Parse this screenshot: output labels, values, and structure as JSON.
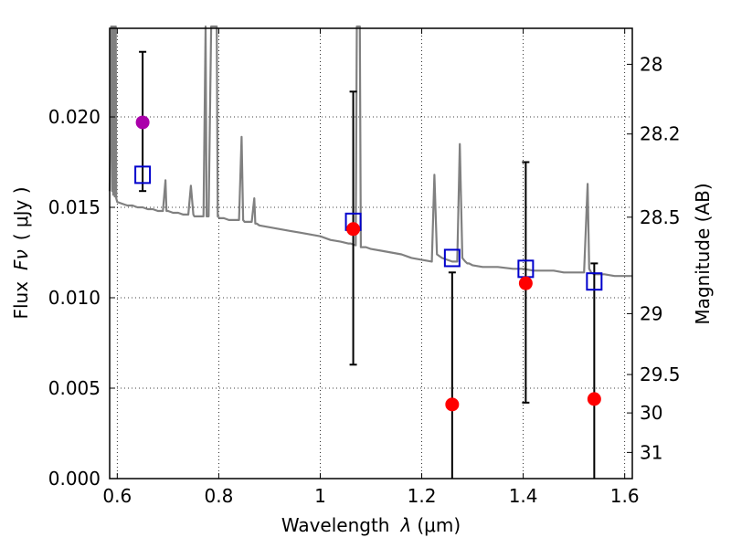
{
  "chart_data": {
    "type": "scatter",
    "xlabel_prefix": "Wavelength",
    "xlabel_symbol": "λ",
    "xlabel_unit": "(μm)",
    "ylabel_prefix": "Flux",
    "ylabel_symbol": "Fν",
    "ylabel_unit": "( μJy )",
    "y2label": "Magnitude (AB)",
    "xlim": [
      0.585,
      1.615
    ],
    "ylim": [
      0.0,
      0.0249
    ],
    "x_ticks": [
      0.6,
      0.8,
      1.0,
      1.2,
      1.4,
      1.6
    ],
    "x_tick_labels": [
      "0.6",
      "0.8",
      "1",
      "1.2",
      "1.4",
      "1.6"
    ],
    "y_ticks": [
      0.0,
      0.005,
      0.01,
      0.015,
      0.02
    ],
    "y_tick_labels": [
      "0.000",
      "0.005",
      "0.010",
      "0.015",
      "0.020"
    ],
    "y2_ticks": [
      28,
      28.2,
      28.5,
      29,
      29.5,
      30,
      31
    ],
    "y2_tick_labels": [
      "28",
      "28.2",
      "28.5",
      "29",
      "29.5",
      "30",
      "31"
    ],
    "grid": true,
    "colors": {
      "model": "#808080",
      "synthetic": "#0000cc",
      "observed": "#ff0000",
      "highlight": "#aa00aa",
      "errorbar": "#000000"
    },
    "model_spectrum": {
      "x": [
        0.585,
        0.588,
        0.59,
        0.591,
        0.592,
        0.594,
        0.595,
        0.597,
        0.598,
        0.6,
        0.61,
        0.62,
        0.63,
        0.64,
        0.65,
        0.66,
        0.67,
        0.68,
        0.69,
        0.695,
        0.697,
        0.7,
        0.71,
        0.72,
        0.73,
        0.74,
        0.745,
        0.75,
        0.752,
        0.755,
        0.76,
        0.77,
        0.774,
        0.776,
        0.78,
        0.785,
        0.79,
        0.796,
        0.798,
        0.802,
        0.806,
        0.81,
        0.82,
        0.83,
        0.84,
        0.845,
        0.848,
        0.851,
        0.855,
        0.86,
        0.865,
        0.87,
        0.872,
        0.875,
        0.88,
        0.9,
        0.92,
        0.94,
        0.96,
        0.98,
        1.0,
        1.02,
        1.04,
        1.055,
        1.06,
        1.07,
        1.072,
        1.074,
        1.076,
        1.078,
        1.08,
        1.085,
        1.09,
        1.1,
        1.12,
        1.14,
        1.16,
        1.18,
        1.2,
        1.22,
        1.225,
        1.23,
        1.235,
        1.24,
        1.25,
        1.26,
        1.27,
        1.275,
        1.28,
        1.283,
        1.286,
        1.29,
        1.293,
        1.3,
        1.32,
        1.35,
        1.38,
        1.4,
        1.42,
        1.44,
        1.46,
        1.48,
        1.5,
        1.51,
        1.52,
        1.527,
        1.53,
        1.534,
        1.54,
        1.56,
        1.58,
        1.6,
        1.615
      ],
      "y": [
        0.0159,
        0.026,
        0.0159,
        0.026,
        0.0157,
        0.026,
        0.0156,
        0.026,
        0.0155,
        0.0153,
        0.0152,
        0.0151,
        0.0151,
        0.015,
        0.015,
        0.0149,
        0.0149,
        0.0148,
        0.0148,
        0.0165,
        0.0148,
        0.0148,
        0.0147,
        0.0147,
        0.0146,
        0.0146,
        0.0162,
        0.0146,
        0.0145,
        0.0145,
        0.0145,
        0.0145,
        0.026,
        0.0145,
        0.0145,
        0.026,
        0.026,
        0.026,
        0.0145,
        0.0144,
        0.0144,
        0.0144,
        0.0143,
        0.0143,
        0.0143,
        0.0189,
        0.0143,
        0.0142,
        0.0142,
        0.0142,
        0.0142,
        0.0155,
        0.0141,
        0.0141,
        0.014,
        0.0139,
        0.0138,
        0.0137,
        0.0136,
        0.0135,
        0.0134,
        0.0132,
        0.0131,
        0.013,
        0.013,
        0.0129,
        0.026,
        0.026,
        0.026,
        0.026,
        0.0128,
        0.0128,
        0.0128,
        0.0127,
        0.0126,
        0.0125,
        0.0124,
        0.0122,
        0.0121,
        0.012,
        0.0168,
        0.0124,
        0.0123,
        0.0122,
        0.0121,
        0.012,
        0.012,
        0.0185,
        0.0122,
        0.0121,
        0.012,
        0.0119,
        0.0119,
        0.0118,
        0.0117,
        0.0117,
        0.0116,
        0.0116,
        0.0115,
        0.0115,
        0.0115,
        0.0114,
        0.0114,
        0.0114,
        0.0114,
        0.0163,
        0.0116,
        0.0114,
        0.0113,
        0.0113,
        0.0112,
        0.0112,
        0.0112
      ]
    },
    "points": [
      {
        "x": 0.65,
        "synthetic": 0.0168,
        "observed": 0.0197,
        "observed_kind": "highlight",
        "err_low": 0.0159,
        "err_high": 0.0236
      },
      {
        "x": 1.065,
        "synthetic": 0.0142,
        "observed": 0.0138,
        "observed_kind": "observed",
        "err_low": 0.0063,
        "err_high": 0.0214
      },
      {
        "x": 1.26,
        "synthetic": 0.0122,
        "observed": 0.0041,
        "observed_kind": "observed",
        "err_low": 0.0,
        "err_high": 0.0114
      },
      {
        "x": 1.405,
        "synthetic": 0.0116,
        "observed": 0.0108,
        "observed_kind": "observed",
        "err_low": 0.0042,
        "err_high": 0.0175
      },
      {
        "x": 1.54,
        "synthetic": 0.0109,
        "observed": 0.0044,
        "observed_kind": "observed",
        "err_low": 0.0,
        "err_high": 0.0119
      }
    ]
  }
}
